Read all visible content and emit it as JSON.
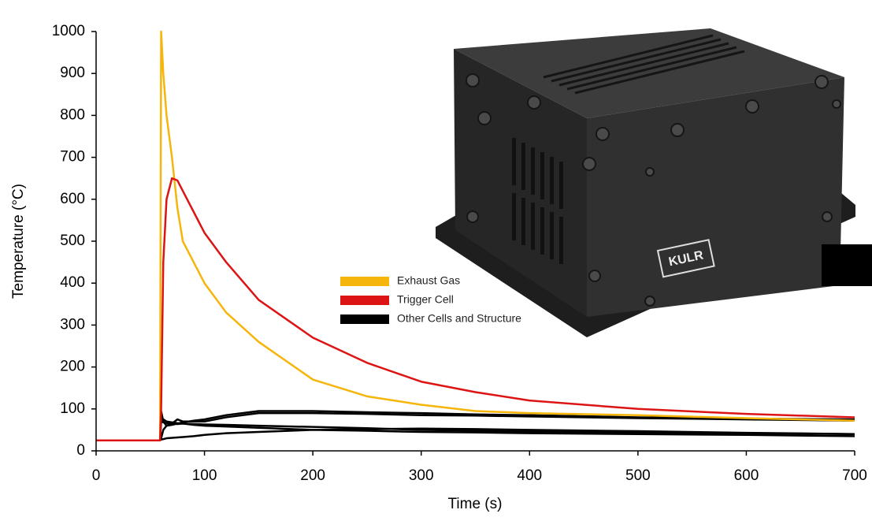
{
  "chart_data": {
    "type": "line",
    "xlabel": "Time (s)",
    "ylabel": "Temperature (°C)",
    "x": [
      0,
      55,
      59,
      60,
      62,
      65,
      70,
      75,
      80,
      90,
      100,
      120,
      150,
      200,
      250,
      300,
      350,
      400,
      500,
      600,
      700
    ],
    "series": [
      {
        "name": "Exhaust Gas",
        "color": "#f5b50a",
        "values": [
          25,
          25,
          25,
          1000,
          900,
          800,
          700,
          580,
          500,
          450,
          400,
          330,
          260,
          170,
          130,
          110,
          95,
          90,
          85,
          78,
          72
        ]
      },
      {
        "name": "Trigger Cell",
        "color": "#dd1414",
        "values": [
          25,
          25,
          25,
          100,
          450,
          600,
          650,
          645,
          620,
          570,
          520,
          450,
          360,
          270,
          210,
          165,
          140,
          120,
          100,
          88,
          80
        ]
      },
      {
        "name": "Other Cells and Structure",
        "color": "#000000",
        "values": [
          25,
          25,
          25,
          95,
          70,
          60,
          65,
          75,
          70,
          70,
          70,
          80,
          90,
          90,
          88,
          85,
          84,
          82,
          78,
          75,
          72
        ]
      },
      {
        "name": "Other Cells and Structure",
        "color": "#000000",
        "values": [
          25,
          25,
          25,
          30,
          50,
          60,
          62,
          65,
          68,
          72,
          75,
          85,
          95,
          95,
          92,
          90,
          87,
          85,
          80,
          77,
          75
        ]
      },
      {
        "name": "Other Cells and Structure",
        "color": "#000000",
        "values": [
          25,
          25,
          25,
          70,
          68,
          66,
          65,
          64,
          65,
          62,
          60,
          58,
          55,
          50,
          48,
          45,
          44,
          42,
          40,
          38,
          35
        ]
      },
      {
        "name": "Other Cells and Structure",
        "color": "#000000",
        "values": [
          25,
          25,
          25,
          27,
          28,
          30,
          31,
          32,
          33,
          35,
          38,
          42,
          45,
          50,
          52,
          53,
          52,
          50,
          47,
          43,
          40
        ]
      },
      {
        "name": "Other Cells and Structure",
        "color": "#000000",
        "values": [
          25,
          25,
          25,
          80,
          75,
          70,
          68,
          66,
          65,
          64,
          63,
          62,
          60,
          57,
          54,
          50,
          48,
          46,
          44,
          42,
          40
        ]
      }
    ],
    "xlim": [
      0,
      700
    ],
    "xticks": [
      0,
      100,
      200,
      300,
      400,
      500,
      600,
      700
    ],
    "ylim": [
      0,
      1000
    ],
    "yticks": [
      0,
      100,
      200,
      300,
      400,
      500,
      600,
      700,
      800,
      900,
      1000
    ],
    "grid": false
  },
  "image": {
    "logo": "KULR"
  }
}
